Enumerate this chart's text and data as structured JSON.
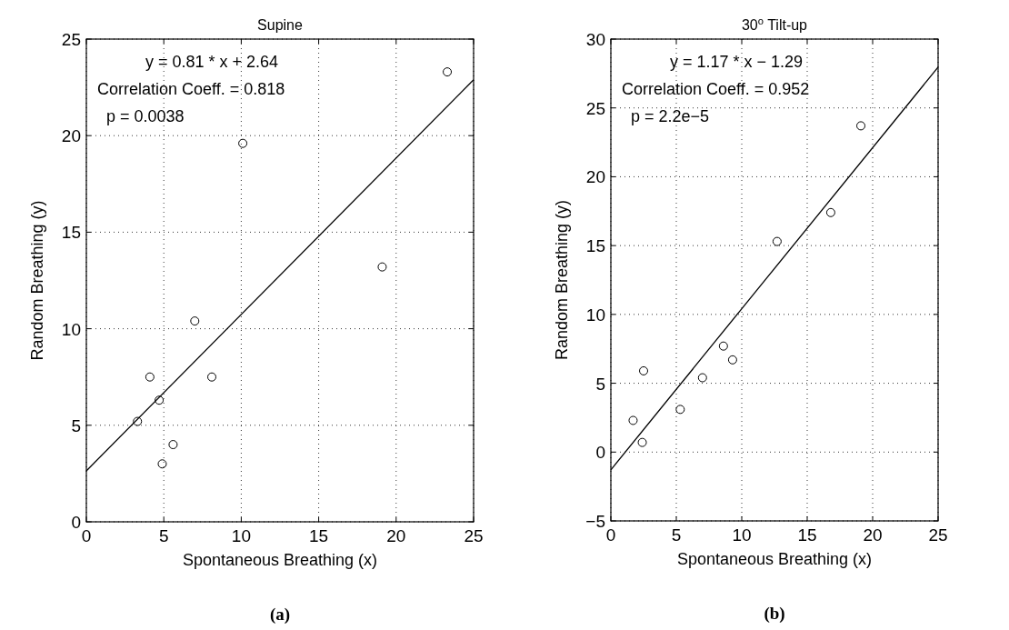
{
  "chart_data": [
    {
      "type": "scatter",
      "title": "Supine",
      "xlabel": "Spontaneous Breathing (x)",
      "ylabel": "Random Breathing (y)",
      "xlim": [
        0,
        25
      ],
      "ylim": [
        0,
        25
      ],
      "xticks": [
        0,
        5,
        10,
        15,
        20,
        25
      ],
      "yticks": [
        0,
        5,
        10,
        15,
        20,
        25
      ],
      "grid": true,
      "marker": "circle",
      "series": [
        {
          "color": "#000000",
          "x": [
            3.3,
            4.1,
            4.7,
            4.9,
            5.6,
            7.0,
            8.1,
            10.1,
            19.1,
            23.3
          ],
          "values": [
            5.2,
            7.5,
            6.3,
            3.0,
            4.0,
            10.4,
            7.5,
            19.6,
            13.2,
            23.3
          ]
        },
        {
          "type": "line",
          "marker": "none",
          "color": "#000000",
          "x": [
            0,
            25
          ],
          "values": [
            2.64,
            22.89
          ]
        }
      ],
      "annotations": [
        "y = 0.81 * x + 2.64",
        "Correlation Coeff. = 0.818",
        "p = 0.0038",
        "(a)"
      ]
    },
    {
      "type": "scatter",
      "title": "30$^{o}$ Tilt-up",
      "xlabel": "Spontaneous Breathing (x)",
      "ylabel": "Random Breathing (y)",
      "xlim": [
        0,
        25
      ],
      "ylim": [
        -5,
        30
      ],
      "xticks": [
        0,
        5,
        10,
        15,
        20,
        25
      ],
      "yticks": [
        -5,
        0,
        5,
        10,
        15,
        20,
        25,
        30
      ],
      "grid": true,
      "marker": "circle",
      "series": [
        {
          "color": "#000000",
          "x": [
            1.7,
            2.4,
            2.5,
            5.3,
            7.0,
            8.6,
            9.3,
            12.7,
            16.8,
            19.1
          ],
          "values": [
            2.3,
            0.7,
            5.9,
            3.1,
            5.4,
            7.7,
            6.7,
            15.3,
            17.4,
            23.7
          ]
        },
        {
          "type": "line",
          "marker": "none",
          "color": "#000000",
          "x": [
            0,
            25
          ],
          "values": [
            -1.29,
            27.96
          ]
        }
      ],
      "annotations": [
        "y = 1.17 * x − 1.29",
        "Correlation Coeff. = 0.952",
        "p = 2.2e−5",
        "(b)"
      ]
    }
  ]
}
